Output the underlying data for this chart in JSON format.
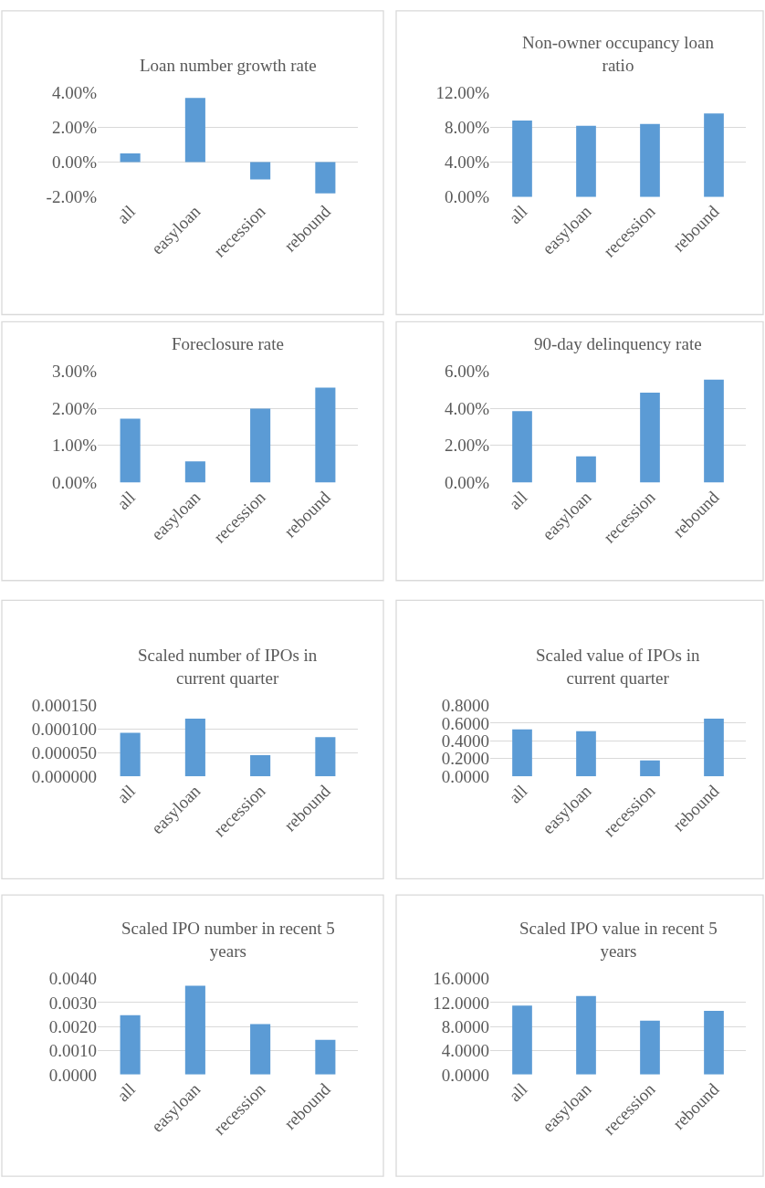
{
  "chart_data": [
    {
      "type": "bar",
      "title": "Loan number growth rate",
      "categories": [
        "all",
        "easyloan",
        "recession",
        "rebound"
      ],
      "values": [
        0.5,
        3.7,
        -1.0,
        -1.8
      ],
      "color": "#5b9bd5",
      "ylim": [
        -2,
        4
      ],
      "yticks": [
        {
          "value": -2,
          "label": "-2.00%"
        },
        {
          "value": 0,
          "label": "0.00%"
        },
        {
          "value": 2,
          "label": "2.00%"
        },
        {
          "value": 4,
          "label": "4.00%"
        }
      ],
      "grid": "y"
    },
    {
      "type": "bar",
      "title": "Non-owner occupancy loan ratio",
      "categories": [
        "all",
        "easyloan",
        "recession",
        "rebound"
      ],
      "values": [
        8.8,
        8.2,
        8.4,
        9.6
      ],
      "color": "#5b9bd5",
      "ylim": [
        0,
        12
      ],
      "yticks": [
        {
          "value": 0,
          "label": "0.00%"
        },
        {
          "value": 4,
          "label": "4.00%"
        },
        {
          "value": 8,
          "label": "8.00%"
        },
        {
          "value": 12,
          "label": "12.00%"
        }
      ],
      "grid": "y"
    },
    {
      "type": "bar",
      "title": "Foreclosure rate",
      "categories": [
        "all",
        "easyloan",
        "recession",
        "rebound"
      ],
      "values": [
        1.72,
        0.57,
        1.99,
        2.56
      ],
      "color": "#5b9bd5",
      "ylim": [
        0,
        3
      ],
      "yticks": [
        {
          "value": 0,
          "label": "0.00%"
        },
        {
          "value": 1,
          "label": "1.00%"
        },
        {
          "value": 2,
          "label": "2.00%"
        },
        {
          "value": 3,
          "label": "3.00%"
        }
      ],
      "grid": "y"
    },
    {
      "type": "bar",
      "title": "90-day delinquency rate",
      "categories": [
        "all",
        "easyloan",
        "recession",
        "rebound"
      ],
      "values": [
        3.85,
        1.42,
        4.85,
        5.55
      ],
      "color": "#5b9bd5",
      "ylim": [
        0,
        6
      ],
      "yticks": [
        {
          "value": 0,
          "label": "0.00%"
        },
        {
          "value": 2,
          "label": "2.00%"
        },
        {
          "value": 4,
          "label": "4.00%"
        },
        {
          "value": 6,
          "label": "6.00%"
        }
      ],
      "grid": "y"
    },
    {
      "type": "bar",
      "title": "Scaled number of IPOs in current quarter",
      "categories": [
        "all",
        "easyloan",
        "recession",
        "rebound"
      ],
      "values": [
        9.2e-05,
        0.000122,
        4.5e-05,
        8.3e-05
      ],
      "color": "#5b9bd5",
      "ylim": [
        0,
        0.00015
      ],
      "yticks": [
        {
          "value": 0,
          "label": "0.000000"
        },
        {
          "value": 5e-05,
          "label": "0.000050"
        },
        {
          "value": 0.0001,
          "label": "0.000100"
        },
        {
          "value": 0.00015,
          "label": "0.000150"
        }
      ],
      "grid": "y"
    },
    {
      "type": "bar",
      "title": "Scaled value of IPOs in current quarter",
      "categories": [
        "all",
        "easyloan",
        "recession",
        "rebound"
      ],
      "values": [
        0.53,
        0.51,
        0.18,
        0.65
      ],
      "color": "#5b9bd5",
      "ylim": [
        0,
        0.8
      ],
      "yticks": [
        {
          "value": 0,
          "label": "0.0000"
        },
        {
          "value": 0.2,
          "label": "0.2000"
        },
        {
          "value": 0.4,
          "label": "0.4000"
        },
        {
          "value": 0.6,
          "label": "0.6000"
        },
        {
          "value": 0.8,
          "label": "0.8000"
        }
      ],
      "grid": "y"
    },
    {
      "type": "bar",
      "title": "Scaled IPO number in recent 5 years",
      "categories": [
        "all",
        "easyloan",
        "recession",
        "rebound"
      ],
      "values": [
        0.00247,
        0.0037,
        0.0021,
        0.00145
      ],
      "color": "#5b9bd5",
      "ylim": [
        0,
        0.004
      ],
      "yticks": [
        {
          "value": 0,
          "label": "0.0000"
        },
        {
          "value": 0.001,
          "label": "0.0010"
        },
        {
          "value": 0.002,
          "label": "0.0020"
        },
        {
          "value": 0.003,
          "label": "0.0030"
        },
        {
          "value": 0.004,
          "label": "0.0040"
        }
      ],
      "grid": "y"
    },
    {
      "type": "bar",
      "title": "Scaled IPO value in recent 5 years",
      "categories": [
        "all",
        "easyloan",
        "recession",
        "rebound"
      ],
      "values": [
        11.5,
        13.1,
        9.0,
        10.6
      ],
      "color": "#5b9bd5",
      "ylim": [
        0,
        16
      ],
      "yticks": [
        {
          "value": 0,
          "label": "0.0000"
        },
        {
          "value": 4,
          "label": "4.0000"
        },
        {
          "value": 8,
          "label": "8.0000"
        },
        {
          "value": 12,
          "label": "12.0000"
        },
        {
          "value": 16,
          "label": "16.0000"
        }
      ],
      "grid": "y"
    }
  ]
}
